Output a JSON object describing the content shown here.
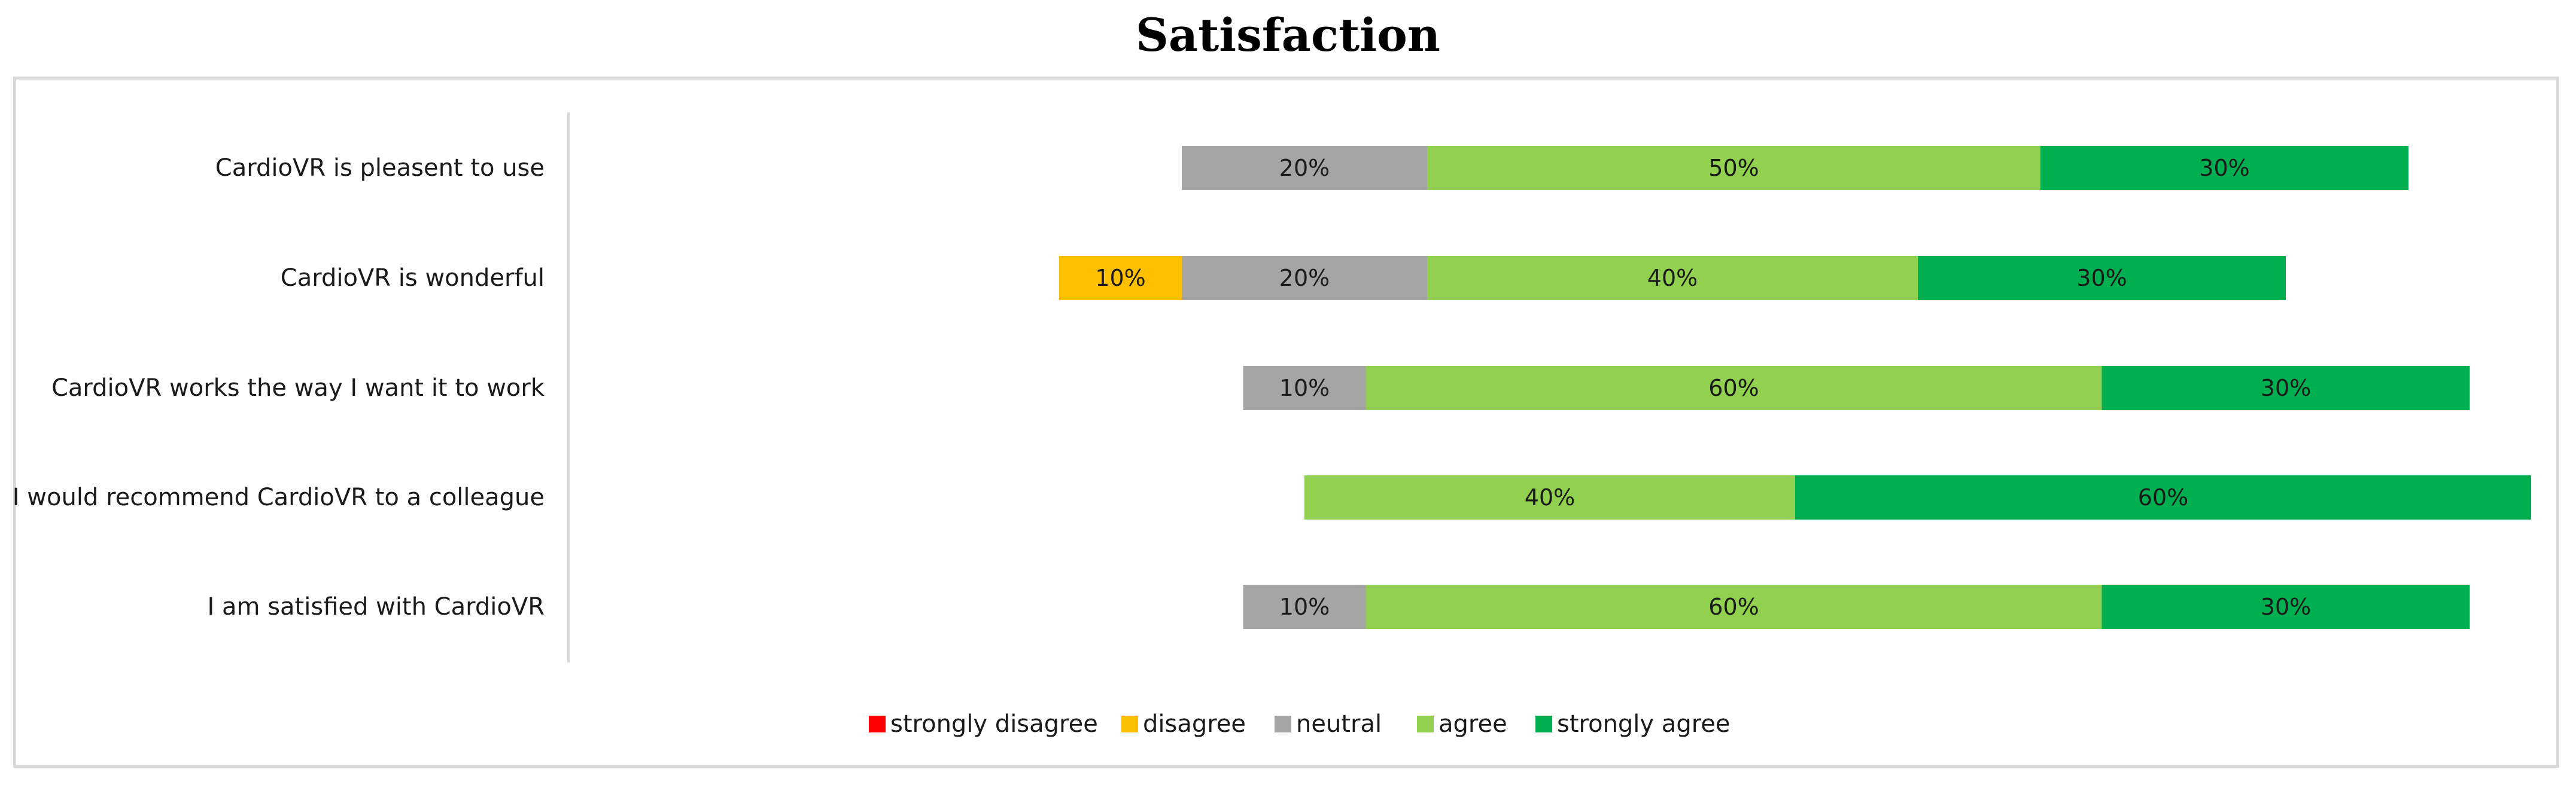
{
  "chart_data": {
    "type": "bar",
    "orientation": "horizontal",
    "stacked": "diverging",
    "title": "Satisfaction",
    "categories": [
      "CardioVR is pleasent to use",
      "CardioVR is wonderful",
      "CardioVR works the way I want it to work",
      "I would recommend CardioVR to a colleague",
      "I am satisfied with CardioVR"
    ],
    "series": [
      {
        "name": "strongly disagree",
        "color": "#ff0000",
        "values": [
          0,
          0,
          0,
          0,
          0
        ],
        "labels": [
          "",
          "",
          "",
          "",
          ""
        ]
      },
      {
        "name": "disagree",
        "color": "#ffc000",
        "values": [
          0,
          10,
          0,
          0,
          0
        ],
        "labels": [
          "",
          "10%",
          "",
          "",
          ""
        ]
      },
      {
        "name": "neutral",
        "color": "#a5a5a5",
        "values": [
          20,
          20,
          10,
          0,
          10
        ],
        "labels": [
          "20%",
          "20%",
          "10%",
          "",
          "10%"
        ]
      },
      {
        "name": "agree",
        "color": "#92d050",
        "values": [
          50,
          40,
          60,
          40,
          60
        ],
        "labels": [
          "50%",
          "40%",
          "60%",
          "40%",
          "60%"
        ]
      },
      {
        "name": "strongly agree",
        "color": "#00b050",
        "values": [
          30,
          30,
          30,
          60,
          30
        ],
        "labels": [
          "30%",
          "30%",
          "30%",
          "60%",
          "30%"
        ]
      }
    ],
    "xlim": [
      -60,
      100
    ],
    "grid": false,
    "legend": "bottom"
  }
}
